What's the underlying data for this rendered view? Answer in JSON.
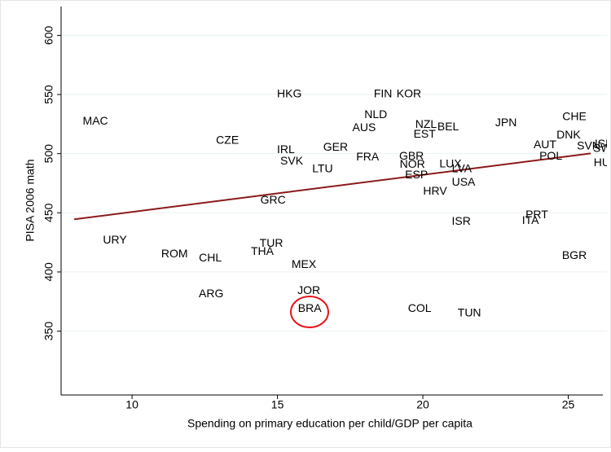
{
  "chart_data": {
    "type": "scatter",
    "x_label": "Spending on primary education per child/GDP per capita",
    "y_label": "PISA 2006 math",
    "labels": [
      "MAC",
      "HKG",
      "FIN",
      "KOR",
      "NLD",
      "AUS",
      "NZL",
      "BEL",
      "EST",
      "JPN",
      "CHE",
      "DNK",
      "ISL",
      "SVN",
      "SWE",
      "HUN",
      "CZE",
      "IRL",
      "SVK",
      "GER",
      "LTU",
      "FRA",
      "GBR",
      "NOR",
      "ESP",
      "LUX",
      "LVA",
      "USA",
      "HRV",
      "AUT",
      "POL",
      "PRT",
      "ITA",
      "GRC",
      "ISR",
      "URY",
      "TUR",
      "THA",
      "ROM",
      "CHL",
      "MEX",
      "BGR",
      "JOR",
      "ARG",
      "BRA",
      "COL",
      "TUN"
    ],
    "x": [
      8.74,
      15.41,
      18.63,
      19.52,
      18.38,
      17.98,
      20.11,
      20.87,
      20.06,
      22.86,
      25.21,
      25.01,
      26.2,
      25.7,
      26.3,
      26.3,
      13.28,
      15.29,
      15.49,
      17.0,
      16.55,
      18.1,
      19.61,
      19.64,
      19.78,
      20.95,
      21.34,
      21.4,
      20.42,
      24.2,
      24.4,
      23.92,
      23.7,
      14.85,
      21.32,
      9.41,
      14.79,
      14.48,
      11.46,
      12.69,
      15.91,
      25.21,
      16.08,
      12.72,
      16.11,
      19.89,
      21.6
    ],
    "y": [
      527,
      550,
      550,
      550,
      532.6,
      521.5,
      524.3,
      522.2,
      516,
      525.7,
      531,
      515.3,
      508,
      506,
      504,
      492,
      511,
      503,
      493.3,
      505,
      487,
      496.8,
      497.5,
      490.6,
      481.6,
      491,
      487,
      475.4,
      468,
      507,
      497.5,
      448,
      443,
      460.3,
      442.4,
      426.6,
      423.8,
      417,
      415,
      411.4,
      406,
      413.5,
      384,
      381,
      368.8,
      368.8,
      365
    ],
    "label_color": "#1a476f",
    "fit": {
      "x": [
        8.01,
        25.77
      ],
      "y": [
        444.5,
        500.2
      ],
      "color": "#8b1a1a"
    },
    "xlim": [
      7.56,
      26.19
    ],
    "ylim": [
      296,
      623
    ],
    "xticks": [
      10,
      15,
      20,
      25
    ],
    "yticks": [
      350,
      400,
      450,
      500,
      550,
      600
    ],
    "grid": true
  }
}
